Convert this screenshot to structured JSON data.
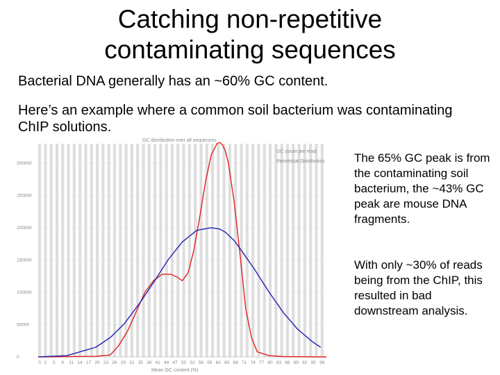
{
  "slide": {
    "title_line1": "Catching non-repetitive",
    "title_line2": "contaminating sequences",
    "paragraph1": "Bacterial DNA generally has an ~60% GC content.",
    "paragraph2": "Here’s an example where a common soil bacterium was contaminating ChIP solutions.",
    "side_text1": "The 65% GC peak is from the contaminating soil bacterium, the ~43% GC peak are mouse DNA fragments.",
    "side_text2": "With only ~30% of reads being from the ChIP, this resulted in bad downstream analysis."
  },
  "chart_data": {
    "type": "line",
    "title": "GC distribution over all sequences",
    "xlabel": "Mean GC content (%)",
    "ylabel": "",
    "xlim": [
      0,
      100
    ],
    "ylim": [
      0,
      330000
    ],
    "yticks": [
      0,
      50000,
      100000,
      150000,
      200000,
      250000,
      300000
    ],
    "xticks": [
      0,
      2,
      5,
      8,
      11,
      14,
      17,
      20,
      23,
      26,
      29,
      32,
      35,
      38,
      41,
      44,
      47,
      50,
      53,
      56,
      59,
      62,
      65,
      68,
      71,
      74,
      77,
      80,
      83,
      86,
      89,
      92,
      95,
      98
    ],
    "legend_position": "top-right",
    "grid": true,
    "colors": {
      "gc_count": "#e02020",
      "theoretical": "#2020b0",
      "band": "#dedede"
    },
    "series": [
      {
        "name": "GC count per read",
        "x": [
          0,
          20,
          25,
          28,
          31,
          34,
          37,
          40,
          43,
          46,
          48,
          50,
          52,
          54,
          56,
          58,
          60,
          62,
          63,
          64,
          65,
          66,
          68,
          70,
          72,
          74,
          76,
          80,
          85,
          100
        ],
        "y": [
          0,
          1000,
          3000,
          18000,
          40000,
          70000,
          100000,
          118000,
          128000,
          128000,
          124000,
          118000,
          130000,
          165000,
          215000,
          270000,
          312000,
          330000,
          332000,
          328000,
          318000,
          300000,
          240000,
          160000,
          75000,
          30000,
          8000,
          2000,
          500,
          0
        ]
      },
      {
        "name": "theoretical Distribution",
        "x": [
          0,
          10,
          20,
          25,
          30,
          35,
          40,
          45,
          50,
          55,
          60,
          63,
          65,
          68,
          70,
          75,
          80,
          85,
          90,
          95,
          98
        ],
        "y": [
          100,
          2000,
          15000,
          30000,
          52000,
          82000,
          115000,
          150000,
          178000,
          196000,
          200000,
          198000,
          193000,
          180000,
          168000,
          136000,
          101000,
          69000,
          43000,
          24000,
          15000
        ]
      }
    ]
  }
}
